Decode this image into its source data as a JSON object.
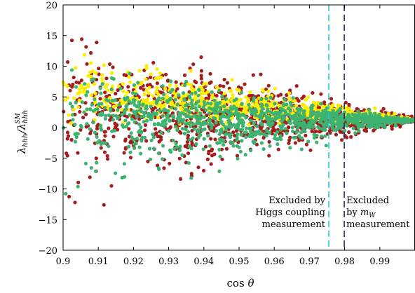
{
  "chart_data": {
    "type": "scatter",
    "xlabel": "cos θ",
    "ylabel": "λhhh/λhhh^SM",
    "xlim": [
      0.9,
      1.0
    ],
    "ylim": [
      -20,
      20
    ],
    "x_ticks": [
      0.9,
      0.91,
      0.92,
      0.93,
      0.94,
      0.95,
      0.96,
      0.97,
      0.98,
      0.99
    ],
    "x_tick_labels": [
      "0.9",
      "0.91",
      "0.92",
      "0.93",
      "0.94",
      "0.95",
      "0.96",
      "0.97",
      "0.98",
      "0.99"
    ],
    "y_ticks": [
      -20,
      -15,
      -10,
      -5,
      0,
      5,
      10,
      15,
      20
    ],
    "y_tick_labels": [
      "−20",
      "−15",
      "−10",
      "−5",
      "0",
      "5",
      "10",
      "15",
      "20"
    ],
    "colors": {
      "red": "#a31d1d",
      "yellow": "#ffee00",
      "green": "#3cb371",
      "cyan": "#29c4dc",
      "navy": "#232a5e"
    },
    "series": [
      {
        "color": "#a31d1d",
        "envelope": {
          "at_x_0_9": [
            -18,
            20
          ],
          "at_x_1_0": [
            0.5,
            1.8
          ]
        },
        "center_at_x_0_9": 2.5
      },
      {
        "color": "#ffee00",
        "envelope": {
          "at_x_0_9": [
            -2,
            16
          ],
          "at_x_1_0": [
            0.8,
            1.6
          ]
        },
        "center_at_x_0_9": 5.5
      },
      {
        "color": "#3cb371",
        "envelope": {
          "at_x_0_9": [
            -17,
            13
          ],
          "at_x_1_0": [
            0.8,
            1.6
          ]
        },
        "center_at_x_0_9": 2.0
      }
    ],
    "vlines": [
      {
        "x": 0.9755,
        "color": "#29c4dc",
        "style": "dashed"
      },
      {
        "x": 0.9799,
        "color": "#232a5e",
        "style": "dashed"
      }
    ],
    "annotations": [
      {
        "lines": [
          "Excluded by",
          "Higgs coupling",
          "measurement"
        ],
        "color": "#29c4dc"
      },
      {
        "lines": [
          "Excluded",
          "by mW",
          "measurement"
        ],
        "color": "#232a5e"
      }
    ]
  }
}
